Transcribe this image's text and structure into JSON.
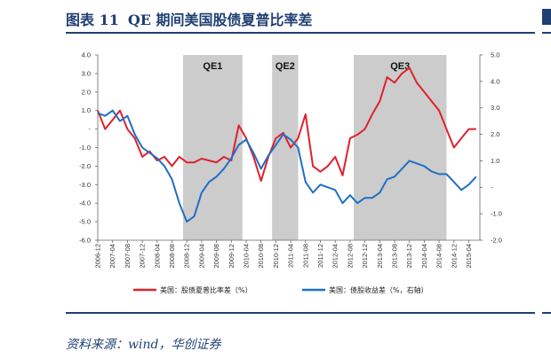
{
  "figure": {
    "label": "图表 11",
    "title": "QE 期间美国股债夏普比率差",
    "source": "资料来源：wind，华创证券"
  },
  "colors": {
    "primary": "#1f3f73",
    "series_left": "#e0212b",
    "series_right": "#1f6fc6",
    "qe_shade": "#cccccc"
  },
  "chart_data": {
    "type": "line",
    "title": "",
    "x_tick_labels": [
      "2006-12",
      "2007-04",
      "2007-08",
      "2007-12",
      "2008-04",
      "2008-08",
      "2008-12",
      "2009-04",
      "2009-08",
      "2009-12",
      "2010-04",
      "2010-08",
      "2010-12",
      "2011-04",
      "2011-08",
      "2011-12",
      "2012-04",
      "2012-08",
      "2012-12",
      "2013-04",
      "2013-08",
      "2013-12",
      "2014-04",
      "2014-08",
      "2014-12",
      "2015-04"
    ],
    "left_axis": {
      "ylim": [
        -6.0,
        4.0
      ],
      "ticks": [
        "4.0",
        "3.0",
        "2.0",
        "1.0",
        "-",
        "-1.0",
        "-2.0",
        "-3.0",
        "-4.0",
        "-5.0",
        "-6.0"
      ]
    },
    "right_axis": {
      "ylim": [
        -2.0,
        5.0
      ],
      "ticks": [
        "5.0",
        "4.0",
        "3.0",
        "2.0",
        "1.0",
        "-",
        "-1.0",
        "-2.0"
      ]
    },
    "shaded_periods": [
      {
        "label": "QE1",
        "start": "2008-11",
        "end": "2010-03"
      },
      {
        "label": "QE2",
        "start": "2010-11",
        "end": "2011-06"
      },
      {
        "label": "QE3",
        "start": "2012-09",
        "end": "2014-10"
      }
    ],
    "legend_position": "bottom",
    "series": [
      {
        "name": "美国：股债夏普比率差（%）",
        "axis": "left",
        "x": [
          "2006-12",
          "2007-02",
          "2007-04",
          "2007-06",
          "2007-08",
          "2007-10",
          "2007-12",
          "2008-02",
          "2008-04",
          "2008-06",
          "2008-08",
          "2008-10",
          "2008-12",
          "2009-02",
          "2009-04",
          "2009-06",
          "2009-08",
          "2009-10",
          "2009-12",
          "2010-02",
          "2010-04",
          "2010-06",
          "2010-08",
          "2010-10",
          "2010-12",
          "2011-02",
          "2011-04",
          "2011-06",
          "2011-08",
          "2011-10",
          "2011-12",
          "2012-02",
          "2012-04",
          "2012-06",
          "2012-08",
          "2012-10",
          "2012-12",
          "2013-02",
          "2013-04",
          "2013-06",
          "2013-08",
          "2013-10",
          "2013-12",
          "2014-02",
          "2014-04",
          "2014-06",
          "2014-08",
          "2014-10",
          "2014-12",
          "2015-02",
          "2015-04",
          "2015-06"
        ],
        "values": [
          1.0,
          0.0,
          0.5,
          1.0,
          0.0,
          -0.5,
          -1.5,
          -1.2,
          -1.7,
          -1.5,
          -2.0,
          -1.5,
          -1.8,
          -1.8,
          -1.6,
          -1.7,
          -1.8,
          -1.5,
          -1.7,
          0.2,
          -0.5,
          -1.5,
          -2.8,
          -1.5,
          -0.5,
          -0.2,
          -1.0,
          -0.5,
          0.8,
          -2.0,
          -2.3,
          -2.0,
          -1.5,
          -2.5,
          -0.5,
          -0.3,
          0.0,
          0.8,
          1.5,
          2.8,
          2.5,
          3.0,
          3.3,
          2.5,
          2.0,
          1.5,
          1.0,
          0.0,
          -1.0,
          -0.5,
          0.0,
          0.0
        ]
      },
      {
        "name": "美国：债股收益差（%，右轴）",
        "axis": "right",
        "x": [
          "2006-12",
          "2007-02",
          "2007-04",
          "2007-06",
          "2007-08",
          "2007-10",
          "2007-12",
          "2008-02",
          "2008-04",
          "2008-06",
          "2008-08",
          "2008-10",
          "2008-12",
          "2009-02",
          "2009-04",
          "2009-06",
          "2009-08",
          "2009-10",
          "2009-12",
          "2010-02",
          "2010-04",
          "2010-06",
          "2010-08",
          "2010-10",
          "2010-12",
          "2011-02",
          "2011-04",
          "2011-06",
          "2011-08",
          "2011-10",
          "2011-12",
          "2012-02",
          "2012-04",
          "2012-06",
          "2012-08",
          "2012-10",
          "2012-12",
          "2013-02",
          "2013-04",
          "2013-06",
          "2013-08",
          "2013-10",
          "2013-12",
          "2014-02",
          "2014-04",
          "2014-06",
          "2014-08",
          "2014-10",
          "2014-12",
          "2015-02",
          "2015-04",
          "2015-06"
        ],
        "values": [
          2.8,
          2.7,
          2.9,
          2.5,
          2.7,
          2.0,
          1.5,
          1.3,
          1.1,
          0.8,
          0.3,
          -0.6,
          -1.3,
          -1.1,
          -0.2,
          0.2,
          0.4,
          0.7,
          1.1,
          1.6,
          1.8,
          1.3,
          0.7,
          1.2,
          1.6,
          2.0,
          1.8,
          1.5,
          0.2,
          -0.2,
          0.1,
          0.0,
          -0.1,
          -0.6,
          -0.3,
          -0.6,
          -0.4,
          -0.4,
          -0.2,
          0.3,
          0.4,
          0.7,
          1.0,
          0.9,
          0.8,
          0.6,
          0.5,
          0.5,
          0.2,
          -0.1,
          0.1,
          0.4
        ]
      }
    ]
  }
}
